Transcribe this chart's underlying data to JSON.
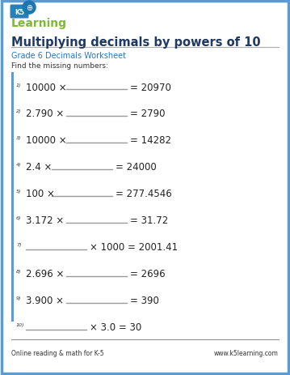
{
  "title": "Multiplying decimals by powers of 10",
  "subtitle": "Grade 6 Decimals Worksheet",
  "instruction": "Find the missing numbers:",
  "problems": [
    {
      "num": "1)",
      "left": "10000 ×",
      "right": "= 20970",
      "blank_before": false
    },
    {
      "num": "2)",
      "left": "2.790 ×",
      "right": "= 2790",
      "blank_before": false
    },
    {
      "num": "3)",
      "left": "10000 ×",
      "right": "= 14282",
      "blank_before": false
    },
    {
      "num": "4)",
      "left": "2.4 ×",
      "right": "= 24000",
      "blank_before": false
    },
    {
      "num": "5)",
      "left": "100 ×",
      "right": "= 277.4546",
      "blank_before": false
    },
    {
      "num": "6)",
      "left": "3.172 ×",
      "right": "= 31.72",
      "blank_before": false
    },
    {
      "num": "7)",
      "left": "",
      "right": "× 1000 = 2001.41",
      "blank_before": true
    },
    {
      "num": "8)",
      "left": "2.696 ×",
      "right": "= 2696",
      "blank_before": false
    },
    {
      "num": "9)",
      "left": "3.900 ×",
      "right": "= 390",
      "blank_before": false
    },
    {
      "num": "10)",
      "left": "",
      "right": "× 3.0 = 30",
      "blank_before": true
    }
  ],
  "footer_left": "Online reading & math for K-5",
  "footer_right": "www.k5learning.com",
  "bg_color": "#ffffff",
  "border_color": "#5b9bd5",
  "title_color": "#1f3864",
  "subtitle_color": "#2e75b6",
  "text_color": "#333333",
  "problem_color": "#222222",
  "line_color": "#999999",
  "logo_bg": "#1f75b0",
  "logo_text_color": "#7db934",
  "ks_bg": "#2980b9"
}
